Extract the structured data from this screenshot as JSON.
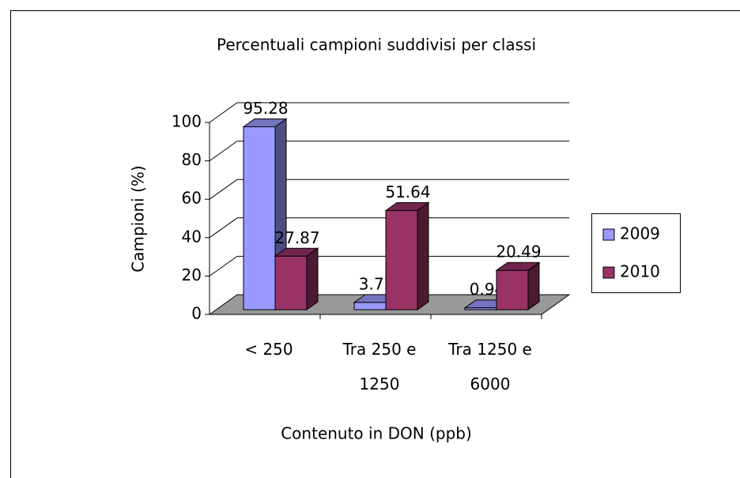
{
  "chart_data": {
    "type": "bar3d",
    "title": "Percentuali campioni suddivisi per classi",
    "x_label": "Contenuto in DON (ppb)",
    "y_label": "Campioni (%)",
    "categories": [
      "< 250",
      "Tra 250 e 1250",
      "Tra 1250 e 6000"
    ],
    "series": [
      {
        "name": "2009",
        "color": "#9999ff",
        "values": [
          95.28,
          3.77,
          0.94
        ]
      },
      {
        "name": "2010",
        "color": "#993366",
        "values": [
          27.87,
          51.64,
          20.49
        ]
      }
    ],
    "ylim": [
      0,
      100
    ],
    "yticks": [
      0,
      20,
      40,
      60,
      80,
      100
    ],
    "grid": true,
    "legend": "right"
  }
}
